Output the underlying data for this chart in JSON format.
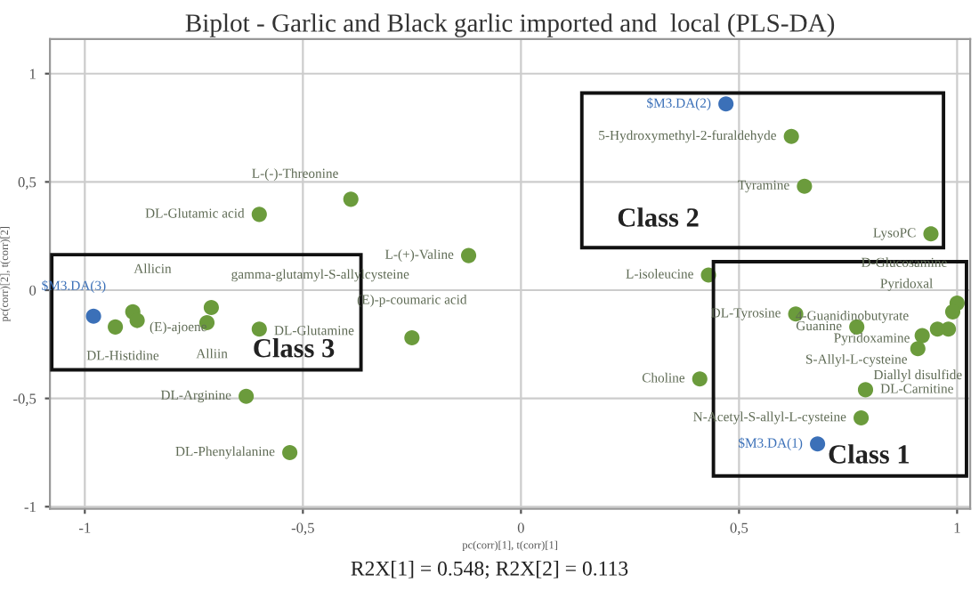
{
  "chart_data": {
    "type": "scatter",
    "title": "Biplot - Garlic and Black garlic imported and  local (PLS-DA)",
    "xlabel": "pc(corr)[1], t(corr)[1]",
    "ylabel": "pc(corr)[2], t(corr)[2]",
    "xlim": [
      -1.08,
      1.03
    ],
    "ylim": [
      -1.01,
      1.16
    ],
    "xticks": [
      -1,
      {
        "value": -0.5,
        "label": "-0,5"
      },
      0,
      {
        "value": 0.5,
        "label": "0,5"
      },
      1
    ],
    "yticks": [
      -1,
      {
        "value": -0.5,
        "label": "-0,5"
      },
      0,
      {
        "value": 0.5,
        "label": "0,5"
      },
      1
    ],
    "grid": true,
    "marker": "circle",
    "series": [
      {
        "color": "#6b9b3c",
        "x": [
          -0.6,
          -0.39,
          -0.12,
          -0.89,
          -0.93,
          -0.88,
          -0.71,
          -0.72,
          -0.6,
          -0.25,
          -0.63,
          -0.53,
          0.62,
          0.65,
          0.94,
          0.43,
          0.63,
          0.77,
          1.0,
          0.99,
          0.98,
          0.955,
          0.92,
          0.91,
          0.41,
          0.79,
          0.78
        ],
        "values": [
          0.35,
          0.42,
          0.16,
          -0.1,
          -0.17,
          -0.14,
          -0.08,
          -0.15,
          -0.18,
          -0.22,
          -0.49,
          -0.75,
          0.71,
          0.48,
          0.26,
          0.07,
          -0.11,
          -0.17,
          -0.06,
          -0.1,
          -0.18,
          -0.18,
          -0.21,
          -0.27,
          -0.41,
          -0.46,
          -0.59
        ]
      },
      {
        "color": "#3b70b8",
        "x": [
          -0.98,
          0.47,
          0.68
        ],
        "values": [
          -0.12,
          0.86,
          -0.71
        ]
      }
    ],
    "annotations": [
      "R2X[1] = 0.548; R2X[2] = 0.113",
      "Class 3",
      "Class 2",
      "Class 1",
      {
        "text": "DL-Glutamic acid",
        "x": -0.6,
        "y": 0.35
      },
      {
        "text": "L-(-)-Threonine",
        "x": -0.39,
        "y": 0.42
      },
      {
        "text": "L-(+)-Valine",
        "x": -0.12,
        "y": 0.16
      },
      {
        "text": "$M3.DA(3)",
        "x": -0.98,
        "y": -0.12
      },
      {
        "text": "Allicin",
        "x": -0.89,
        "y": -0.1
      },
      {
        "text": "DL-Histidine",
        "x": -0.93,
        "y": -0.17
      },
      {
        "text": "(E)-ajoene",
        "x": -0.88,
        "y": -0.14
      },
      {
        "text": "gamma-glutamyl-S-allylcysteine",
        "x": -0.71,
        "y": -0.08
      },
      {
        "text": "Alliin",
        "x": -0.72,
        "y": -0.15
      },
      {
        "text": "DL-Glutamine",
        "x": -0.6,
        "y": -0.18
      },
      {
        "text": "(E)-p-coumaric acid",
        "x": -0.25,
        "y": -0.22
      },
      {
        "text": "DL-Arginine",
        "x": -0.63,
        "y": -0.49
      },
      {
        "text": "DL-Phenylalanine",
        "x": -0.53,
        "y": -0.75
      },
      {
        "text": "$M3.DA(2)",
        "x": 0.47,
        "y": 0.86
      },
      {
        "text": "5-Hydroxymethyl-2-furaldehyde",
        "x": 0.62,
        "y": 0.71
      },
      {
        "text": "Tyramine",
        "x": 0.65,
        "y": 0.48
      },
      {
        "text": "LysoPC",
        "x": 0.94,
        "y": 0.26
      },
      {
        "text": "L-isoleucine",
        "x": 0.43,
        "y": 0.07
      },
      {
        "text": "DL-Tyrosine",
        "x": 0.63,
        "y": -0.11
      },
      {
        "text": "Guanine",
        "x": 0.77,
        "y": -0.17
      },
      {
        "text": "D-Glucosamine",
        "x": 1.0,
        "y": -0.06
      },
      {
        "text": "Pyridoxal",
        "x": 0.99,
        "y": -0.1
      },
      {
        "text": "4-Guanidinobutyrate",
        "x": 0.98,
        "y": -0.18
      },
      {
        "text": "Pyridoxamine",
        "x": 0.955,
        "y": -0.18
      },
      {
        "text": "S-Allyl-L-cysteine",
        "x": 0.92,
        "y": -0.21
      },
      {
        "text": "Diallyl disulfide",
        "x": 0.91,
        "y": -0.27
      },
      {
        "text": "Choline",
        "x": 0.41,
        "y": -0.41
      },
      {
        "text": "DL-Carnitine",
        "x": 0.79,
        "y": -0.46
      },
      {
        "text": "N-Acetyl-S-allyl-L-cysteine",
        "x": 0.78,
        "y": -0.59
      },
      {
        "text": "$M3.DA(1)",
        "x": 0.68,
        "y": -0.71
      }
    ]
  }
}
